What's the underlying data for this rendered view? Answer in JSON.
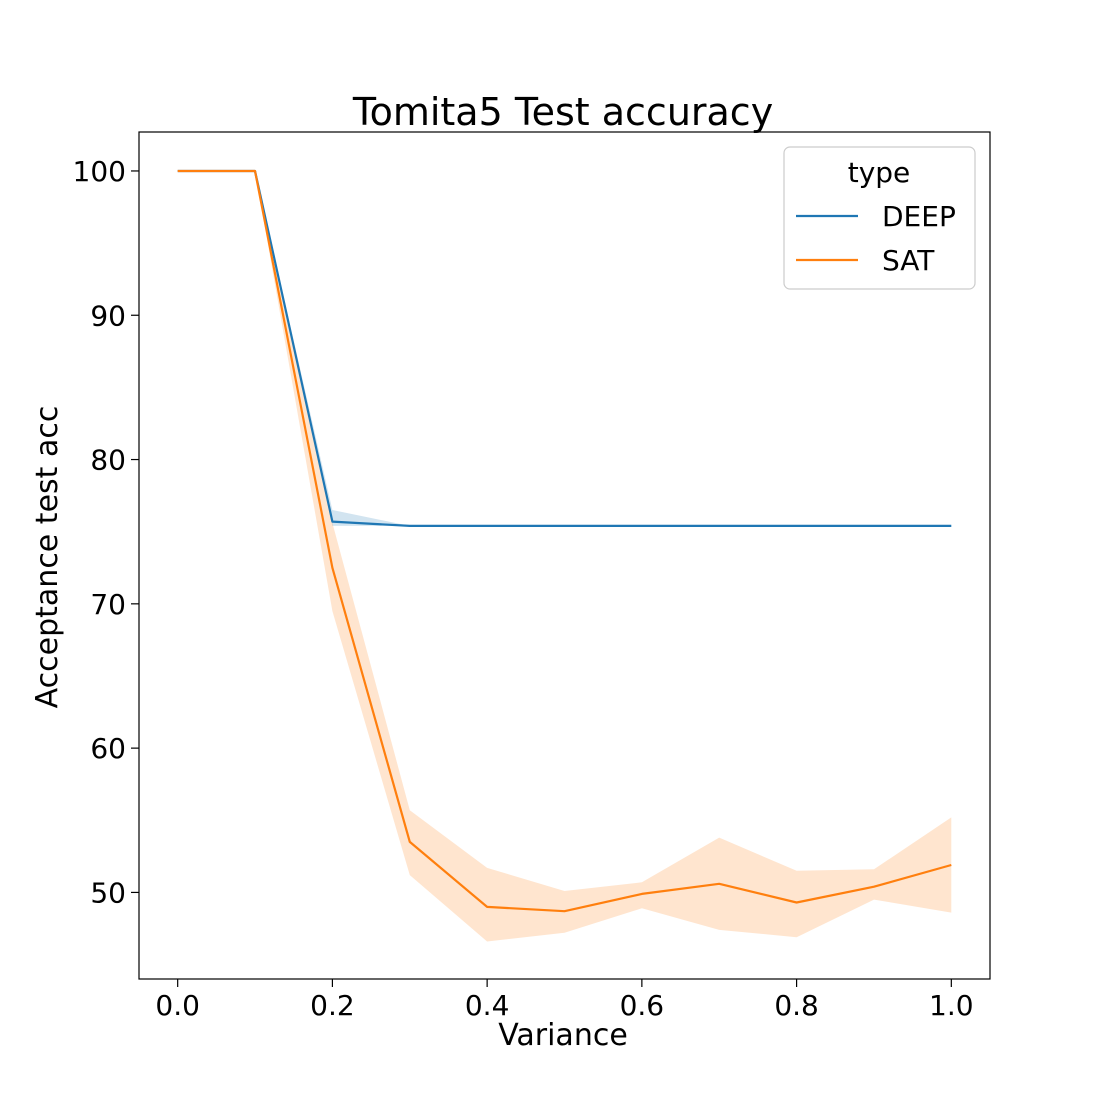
{
  "chart_data": {
    "type": "line",
    "title": "Tomita5 Test accuracy",
    "xlabel": "Variance",
    "ylabel": "Acceptance test acc",
    "xlim": [
      -0.05,
      1.05
    ],
    "ylim": [
      44,
      102.7
    ],
    "x_ticks": [
      0.0,
      0.2,
      0.4,
      0.6,
      0.8,
      1.0
    ],
    "x_tick_labels": [
      "0.0",
      "0.2",
      "0.4",
      "0.6",
      "0.8",
      "1.0"
    ],
    "y_ticks": [
      50,
      60,
      70,
      80,
      90,
      100
    ],
    "y_tick_labels": [
      "50",
      "60",
      "70",
      "80",
      "90",
      "100"
    ],
    "grid": false,
    "legend": {
      "title": "type",
      "position": "top-right"
    },
    "x": [
      0.0,
      0.1,
      0.2,
      0.3,
      0.4,
      0.5,
      0.6,
      0.7,
      0.8,
      0.9,
      1.0
    ],
    "series": [
      {
        "name": "DEEP",
        "color": "#1f77b4",
        "values": [
          100,
          100,
          75.7,
          75.4,
          75.4,
          75.4,
          75.4,
          75.4,
          75.4,
          75.4,
          75.4
        ],
        "ci_lower": [
          100,
          100,
          75.4,
          75.4,
          75.4,
          75.4,
          75.4,
          75.4,
          75.4,
          75.4,
          75.4
        ],
        "ci_upper": [
          100,
          100,
          76.5,
          75.4,
          75.4,
          75.4,
          75.4,
          75.4,
          75.4,
          75.4,
          75.4
        ]
      },
      {
        "name": "SAT",
        "color": "#ff7f0e",
        "values": [
          100,
          100,
          72.5,
          53.5,
          49.0,
          48.7,
          49.9,
          50.6,
          49.3,
          50.4,
          51.9
        ],
        "ci_lower": [
          100,
          100,
          69.5,
          51.2,
          46.6,
          47.2,
          48.9,
          47.4,
          46.9,
          49.5,
          48.6
        ],
        "ci_upper": [
          100,
          100,
          75.6,
          55.7,
          51.7,
          50.1,
          50.7,
          53.8,
          51.5,
          51.6,
          55.2
        ]
      }
    ]
  }
}
